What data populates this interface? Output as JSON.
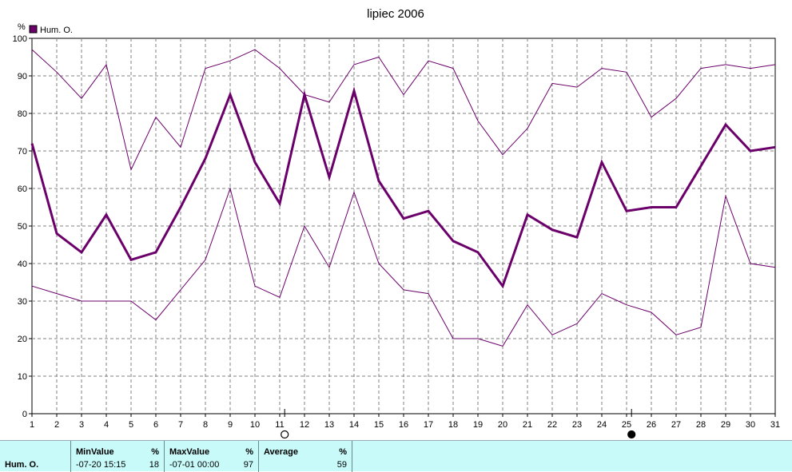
{
  "chart_data": {
    "type": "line",
    "title": "lipiec 2006",
    "ylabel": "%",
    "legend": [
      "Hum. O."
    ],
    "legend_position": "top-left",
    "ylim": [
      0,
      100
    ],
    "yticks": [
      0,
      10,
      20,
      30,
      40,
      50,
      60,
      70,
      80,
      90,
      100
    ],
    "x": [
      1,
      2,
      3,
      4,
      5,
      6,
      7,
      8,
      9,
      10,
      11,
      12,
      13,
      14,
      15,
      16,
      17,
      18,
      19,
      20,
      21,
      22,
      23,
      24,
      25,
      26,
      27,
      28,
      29,
      30,
      31
    ],
    "grid": true,
    "series": [
      {
        "role": "max",
        "values": [
          97,
          91,
          84,
          93,
          65,
          79,
          71,
          92,
          94,
          97,
          92,
          85,
          83,
          93,
          95,
          85,
          94,
          92,
          78,
          69,
          76,
          88,
          87,
          92,
          91,
          79,
          84,
          92,
          93,
          92,
          93
        ]
      },
      {
        "name": "Hum. O.",
        "role": "avg",
        "values": [
          72,
          48,
          43,
          53,
          41,
          43,
          55,
          68,
          85,
          67,
          56,
          85,
          63,
          86,
          62,
          52,
          54,
          46,
          43,
          34,
          53,
          49,
          47,
          67,
          54,
          55,
          55,
          66,
          77,
          70,
          71
        ]
      },
      {
        "role": "min",
        "values": [
          34,
          32,
          30,
          30,
          30,
          25,
          33,
          41,
          60,
          34,
          31,
          50,
          39,
          59,
          40,
          33,
          32,
          20,
          20,
          18,
          29,
          21,
          24,
          32,
          29,
          27,
          21,
          23,
          58,
          40,
          39
        ]
      }
    ],
    "moon_markers": [
      {
        "day": 11,
        "phase": "full-moon"
      },
      {
        "day": 25,
        "phase": "new-moon"
      }
    ],
    "colors": {
      "series": "#6b006b",
      "grid": "#808080",
      "axis": "#000000"
    }
  },
  "stats": {
    "row_label": "Hum. O.",
    "min": {
      "header": "MinValue",
      "unit": "%",
      "when": "-07-20  15:15",
      "value": "18"
    },
    "max": {
      "header": "MaxValue",
      "unit": "%",
      "when": "-07-01  00:00",
      "value": "97"
    },
    "avg": {
      "header": "Average",
      "unit": "%",
      "value": "59"
    }
  }
}
